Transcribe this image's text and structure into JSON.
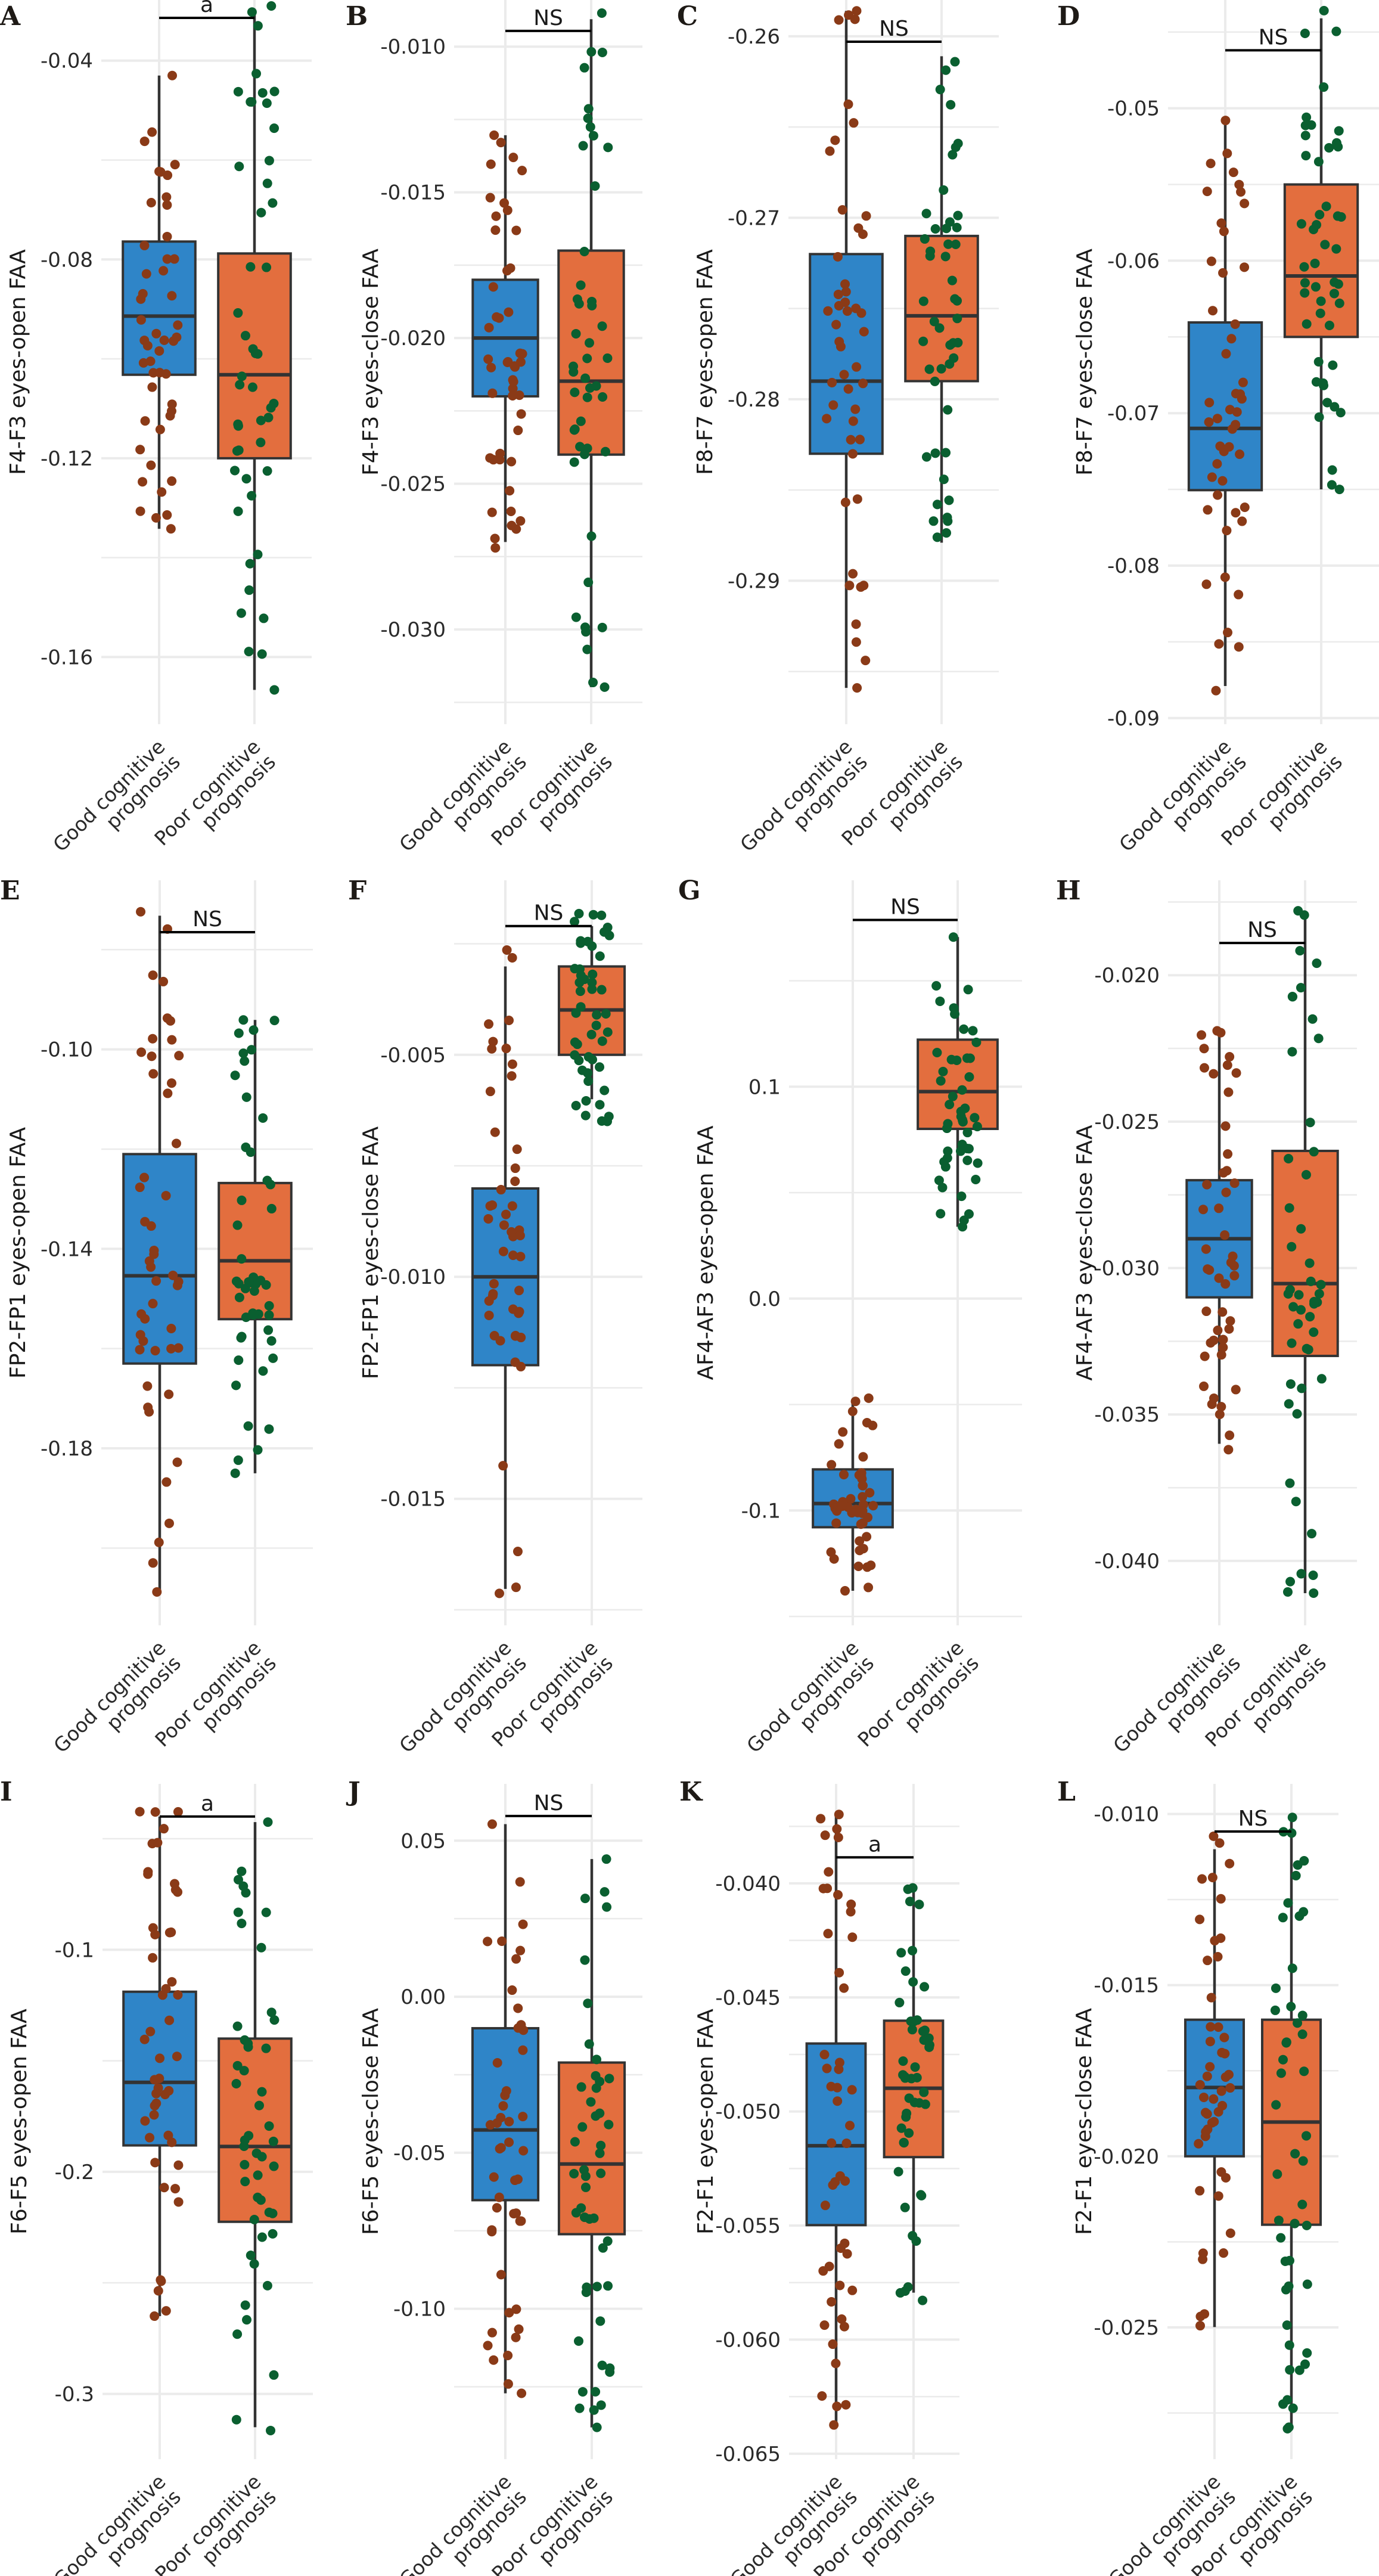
{
  "colors": {
    "good_box": "#2F85C8",
    "poor_box": "#E36E3E",
    "good_points": "#8A3A17",
    "poor_points": "#0A5F30",
    "outline": "#333333",
    "grid": "#EBEBEB"
  },
  "x_categories": [
    {
      "line1": "Good cognitive",
      "line2": "prognosis"
    },
    {
      "line1": "Poor cognitive",
      "line2": "prognosis"
    }
  ],
  "chart_data": [
    {
      "type": "box",
      "panel": "A",
      "ylabel": "F4-F3 eyes-open FAA",
      "ylim": [
        -0.1735,
        -0.0278
      ],
      "ticks": [
        -0.16,
        -0.12,
        -0.08,
        -0.04
      ],
      "tick_labels": [
        "-0.16",
        "-0.12",
        "-0.08",
        "-0.04"
      ],
      "significance": {
        "label": "a",
        "y": -0.0314
      },
      "points_per_group": 48,
      "groups": [
        {
          "name": "Good cognitive prognosis",
          "whisker": [
            -0.1342,
            -0.043
          ],
          "q1": -0.1032,
          "median": -0.0914,
          "q3": -0.0764,
          "point_range": [
            -0.1342,
            -0.043
          ]
        },
        {
          "name": "Poor cognitive prognosis",
          "whisker": [
            -0.1666,
            -0.03
          ],
          "q1": -0.12,
          "median": -0.1032,
          "q3": -0.0788,
          "point_range": [
            -0.1666,
            -0.029
          ]
        }
      ]
    },
    {
      "type": "box",
      "panel": "B",
      "ylabel": "F4-F3 eyes-close FAA",
      "ylim": [
        -0.03325,
        -0.0084
      ],
      "ticks": [
        -0.03,
        -0.025,
        -0.02,
        -0.015,
        -0.01
      ],
      "tick_labels": [
        "-0.030",
        "-0.025",
        "-0.020",
        "-0.015",
        "-0.010"
      ],
      "significance": {
        "label": "NS",
        "y": -0.00946
      },
      "points_per_group": 48,
      "groups": [
        {
          "name": "Good cognitive prognosis",
          "whisker": [
            -0.027,
            -0.01304
          ],
          "q1": -0.022,
          "median": -0.02,
          "q3": -0.018,
          "point_range": [
            -0.0272,
            -0.01304
          ]
        },
        {
          "name": "Poor cognitive prognosis",
          "whisker": [
            -0.03198,
            -0.00906
          ],
          "q1": -0.024,
          "median": -0.02148,
          "q3": -0.017,
          "point_range": [
            -0.03198,
            -0.00885
          ]
        }
      ]
    },
    {
      "type": "box",
      "panel": "C",
      "ylabel": "F8-F7 eyes-open FAA",
      "ylim": [
        -0.2979,
        -0.258
      ],
      "ticks": [
        -0.29,
        -0.28,
        -0.27,
        -0.26
      ],
      "tick_labels": [
        "-0.29",
        "-0.28",
        "-0.27",
        "-0.26"
      ],
      "significance": {
        "label": "NS",
        "y": -0.2603
      },
      "points_per_group": 48,
      "groups": [
        {
          "name": "Good cognitive prognosis",
          "whisker": [
            -0.2959,
            -0.2586
          ],
          "q1": -0.283,
          "median": -0.279,
          "q3": -0.272,
          "point_range": [
            -0.2959,
            -0.2586
          ]
        },
        {
          "name": "Poor cognitive prognosis",
          "whisker": [
            -0.2879,
            -0.2611
          ],
          "q1": -0.279,
          "median": -0.2754,
          "q3": -0.271,
          "point_range": [
            -0.2876,
            -0.2614
          ]
        }
      ]
    },
    {
      "type": "box",
      "panel": "D",
      "ylabel": "F8-F7 eyes-close FAA",
      "ylim": [
        -0.0904,
        -0.0429
      ],
      "ticks": [
        -0.09,
        -0.08,
        -0.07,
        -0.06,
        -0.05
      ],
      "tick_labels": [
        "-0.09",
        "-0.08",
        "-0.07",
        "-0.06",
        "-0.05"
      ],
      "significance": {
        "label": "NS",
        "y": -0.0462
      },
      "points_per_group": 48,
      "groups": [
        {
          "name": "Good cognitive prognosis",
          "whisker": [
            -0.0879,
            -0.051
          ],
          "q1": -0.07505,
          "median": -0.071,
          "q3": -0.06405,
          "point_range": [
            -0.0882,
            -0.0508
          ]
        },
        {
          "name": "Poor cognitive prognosis",
          "whisker": [
            -0.075,
            -0.0441
          ],
          "q1": -0.065,
          "median": -0.061,
          "q3": -0.055,
          "point_range": [
            -0.075,
            -0.0436
          ]
        }
      ]
    },
    {
      "type": "box",
      "panel": "E",
      "ylabel": "FP2-FP1 eyes-open FAA",
      "ylim": [
        -0.2155,
        -0.0661
      ],
      "ticks": [
        -0.18,
        -0.14,
        -0.1
      ],
      "tick_labels": [
        "-0.18",
        "-0.14",
        "-0.10"
      ],
      "significance": {
        "label": "NS",
        "y": -0.0765
      },
      "points_per_group": 48,
      "groups": [
        {
          "name": "Good cognitive prognosis",
          "whisker": [
            -0.2088,
            -0.0732
          ],
          "q1": -0.163,
          "median": -0.1454,
          "q3": -0.121,
          "point_range": [
            -0.2088,
            -0.0724
          ]
        },
        {
          "name": "Poor cognitive prognosis",
          "whisker": [
            -0.185,
            -0.0941
          ],
          "q1": -0.1541,
          "median": -0.1424,
          "q3": -0.1268,
          "point_range": [
            -0.185,
            -0.0941
          ]
        }
      ]
    },
    {
      "type": "box",
      "panel": "F",
      "ylabel": "FP2-FP1 eyes-close FAA",
      "ylim": [
        -0.01785,
        -0.00107
      ],
      "ticks": [
        -0.015,
        -0.01,
        -0.005
      ],
      "tick_labels": [
        "-0.015",
        "-0.010",
        "-0.005"
      ],
      "significance": {
        "label": "NS",
        "y": -0.0021
      },
      "points_per_group": 48,
      "groups": [
        {
          "name": "Good cognitive prognosis",
          "whisker": [
            -0.01703,
            -0.00301
          ],
          "q1": -0.01199,
          "median": -0.01,
          "q3": -0.00801,
          "point_range": [
            -0.01713,
            -0.00264
          ]
        },
        {
          "name": "Poor cognitive prognosis",
          "whisker": [
            -0.006,
            -0.0021
          ],
          "q1": -0.005,
          "median": -0.00399,
          "q3": -0.00301,
          "point_range": [
            -0.0065,
            -0.00182
          ]
        }
      ]
    },
    {
      "type": "box",
      "panel": "G",
      "ylabel": "AF4-AF3 eyes-open FAA",
      "ylim": [
        -0.1542,
        0.1974
      ],
      "ticks": [
        -0.1,
        0.0,
        0.1
      ],
      "tick_labels": [
        "-0.1",
        "0.0",
        "0.1"
      ],
      "significance": {
        "label": "NS",
        "y": 0.1787
      },
      "points_per_group": 48,
      "groups": [
        {
          "name": "Good cognitive prognosis",
          "whisker": [
            -0.1379,
            -0.0484
          ],
          "q1": -0.1079,
          "median": -0.0967,
          "q3": -0.0806,
          "point_range": [
            -0.1379,
            -0.047
          ]
        },
        {
          "name": "Poor cognitive prognosis",
          "whisker": [
            0.0339,
            0.1706
          ],
          "q1": 0.0801,
          "median": 0.0977,
          "q3": 0.1222,
          "point_range": [
            0.0339,
            0.1706
          ]
        }
      ]
    },
    {
      "type": "box",
      "panel": "H",
      "ylabel": "AF4-AF3 eyes-close FAA",
      "ylim": [
        -0.0422,
        -0.01676
      ],
      "ticks": [
        -0.04,
        -0.035,
        -0.03,
        -0.025,
        -0.02
      ],
      "tick_labels": [
        "-0.040",
        "-0.035",
        "-0.030",
        "-0.025",
        "-0.020"
      ],
      "significance": {
        "label": "NS",
        "y": -0.0189
      },
      "points_per_group": 48,
      "groups": [
        {
          "name": "Good cognitive prognosis",
          "whisker": [
            -0.036,
            -0.022
          ],
          "q1": -0.031,
          "median": -0.029,
          "q3": -0.027,
          "point_range": [
            -0.0362,
            -0.0219
          ]
        },
        {
          "name": "Poor cognitive prognosis",
          "whisker": [
            -0.0411,
            -0.018
          ],
          "q1": -0.033,
          "median": -0.03053,
          "q3": -0.026,
          "point_range": [
            -0.0411,
            -0.0178
          ]
        }
      ]
    },
    {
      "type": "box",
      "panel": "I",
      "ylabel": "F6-F5 eyes-open FAA",
      "ylim": [
        -0.3294,
        -0.0253
      ],
      "ticks": [
        -0.3,
        -0.2,
        -0.1
      ],
      "tick_labels": [
        "-0.3",
        "-0.2",
        "-0.1"
      ],
      "significance": {
        "label": "a",
        "y": -0.04
      },
      "points_per_group": 48,
      "groups": [
        {
          "name": "Good cognitive prognosis",
          "whisker": [
            -0.265,
            -0.04
          ],
          "q1": -0.1881,
          "median": -0.1597,
          "q3": -0.1189,
          "point_range": [
            -0.265,
            -0.0378
          ]
        },
        {
          "name": "Poor cognitive prognosis",
          "whisker": [
            -0.315,
            -0.0425
          ],
          "q1": -0.2225,
          "median": -0.1886,
          "q3": -0.14,
          "point_range": [
            -0.3165,
            -0.0425
          ]
        }
      ]
    },
    {
      "type": "box",
      "panel": "J",
      "ylabel": "F6-F5 eyes-close FAA",
      "ylim": [
        -0.1482,
        0.0682
      ],
      "ticks": [
        -0.1,
        -0.05,
        0.0,
        0.05
      ],
      "tick_labels": [
        "-0.10",
        "-0.05",
        "0.00",
        "0.05"
      ],
      "significance": {
        "label": "NS",
        "y": 0.0579
      },
      "points_per_group": 48,
      "groups": [
        {
          "name": "Good cognitive prognosis",
          "whisker": [
            -0.1271,
            0.0553
          ],
          "q1": -0.0652,
          "median": -0.0427,
          "q3": -0.0101,
          "point_range": [
            -0.1271,
            0.0553
          ]
        },
        {
          "name": "Poor cognitive prognosis",
          "whisker": [
            -0.138,
            0.0441
          ],
          "q1": -0.0761,
          "median": -0.0536,
          "q3": -0.0211,
          "point_range": [
            -0.138,
            0.0441
          ]
        }
      ]
    },
    {
      "type": "box",
      "panel": "K",
      "ylabel": "F2-F1 eyes-open FAA",
      "ylim": [
        -0.06524,
        -0.03564
      ],
      "ticks": [
        -0.065,
        -0.06,
        -0.055,
        -0.05,
        -0.045,
        -0.04
      ],
      "tick_labels": [
        "-0.065",
        "-0.060",
        "-0.055",
        "-0.050",
        "-0.045",
        "-0.040"
      ],
      "significance": {
        "label": "a",
        "y": -0.03886
      },
      "points_per_group": 48,
      "groups": [
        {
          "name": "Good cognitive prognosis",
          "whisker": [
            -0.06374,
            -0.03698
          ],
          "q1": -0.05498,
          "median": -0.0515,
          "q3": -0.04702,
          "point_range": [
            -0.06374,
            -0.03698
          ]
        },
        {
          "name": "Poor cognitive prognosis",
          "whisker": [
            -0.05794,
            -0.0402
          ],
          "q1": -0.052,
          "median": -0.04898,
          "q3": -0.04602,
          "point_range": [
            -0.05828,
            -0.0402
          ]
        }
      ]
    },
    {
      "type": "box",
      "panel": "L",
      "ylabel": "F2-F1 eyes-close FAA",
      "ylim": [
        -0.02885,
        -0.00912
      ],
      "ticks": [
        -0.025,
        -0.02,
        -0.015,
        -0.01
      ],
      "tick_labels": [
        "-0.025",
        "-0.020",
        "-0.015",
        "-0.010"
      ],
      "significance": {
        "label": "NS",
        "y": -0.01051
      },
      "points_per_group": 48,
      "groups": [
        {
          "name": "Good cognitive prognosis",
          "whisker": [
            -0.02499,
            -0.01103
          ],
          "q1": -0.02,
          "median": -0.01799,
          "q3": -0.01601,
          "point_range": [
            -0.02495,
            -0.01065
          ]
        },
        {
          "name": "Poor cognitive prognosis",
          "whisker": [
            -0.02796,
            -0.01
          ],
          "q1": -0.022,
          "median": -0.019,
          "q3": -0.01601,
          "point_range": [
            -0.02796,
            -0.0101
          ]
        }
      ]
    }
  ]
}
